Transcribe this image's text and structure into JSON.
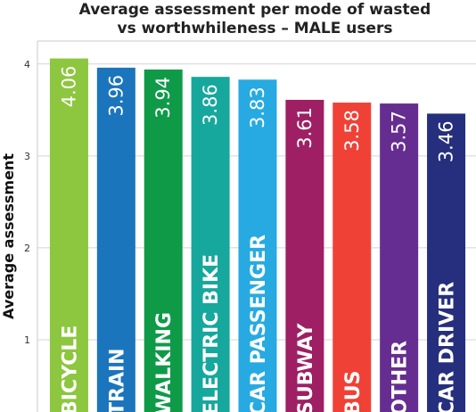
{
  "chart_data": {
    "type": "bar",
    "title_lines": [
      "Average assessment per mode of wasted",
      "vs worthwhileness – MALE users"
    ],
    "ylabel": "Average assessment",
    "xlabel": "",
    "ylim": [
      0,
      4.25
    ],
    "yticks": [
      "1",
      "2",
      "3",
      "4"
    ],
    "grid": true,
    "categories": [
      "BICYCLE",
      "TRAIN",
      "WALKING",
      "ELECTRIC BIKE",
      "CAR PASSENGER",
      "SUBWAY",
      "BUS",
      "OTHER",
      "CAR DRIVER"
    ],
    "values": [
      4.06,
      3.96,
      3.94,
      3.86,
      3.83,
      3.61,
      3.58,
      3.57,
      3.46
    ],
    "value_labels": [
      "4.06",
      "3.96",
      "3.94",
      "3.86",
      "3.83",
      "3.61",
      "3.58",
      "3.57",
      "3.46"
    ],
    "colors": [
      "#8dc63f",
      "#1b75bc",
      "#0f9a48",
      "#16a79d",
      "#27aae1",
      "#9e1f63",
      "#ef4136",
      "#662d91",
      "#262f7d"
    ]
  }
}
